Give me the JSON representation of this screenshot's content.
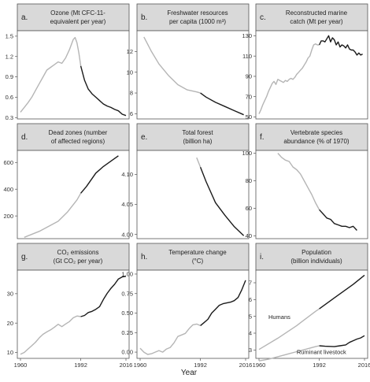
{
  "figure": {
    "xlabel": "Year"
  },
  "colors": {
    "before": "#b5b5b5",
    "after": "#1a1a1a",
    "strip": "#d9d9d9"
  },
  "chart_data": [
    {
      "id": "a",
      "letter": "a.",
      "type": "line",
      "title": [
        "Ozone (Mt CFC-11-",
        "equivalent per year)"
      ],
      "xlim": [
        1960,
        2016
      ],
      "ylim": [
        0.28,
        1.58
      ],
      "xticks": [],
      "yticks": [
        0.3,
        0.6,
        0.9,
        1.2,
        1.5
      ],
      "ytick_labels": [
        "0.3",
        "0.6",
        "0.9",
        "1.2",
        "1.5"
      ],
      "split": 1992,
      "series": [
        {
          "x": [
            1960,
            1962,
            1964,
            1966,
            1968,
            1970,
            1972,
            1974,
            1976,
            1978,
            1980,
            1982,
            1984,
            1986,
            1988,
            1989,
            1990,
            1991,
            1992,
            1994,
            1996,
            1998,
            2000,
            2002,
            2004,
            2006,
            2008,
            2010,
            2012,
            2014,
            2016
          ],
          "y": [
            0.38,
            0.45,
            0.52,
            0.6,
            0.7,
            0.8,
            0.9,
            1.0,
            1.04,
            1.08,
            1.12,
            1.1,
            1.18,
            1.3,
            1.45,
            1.48,
            1.4,
            1.25,
            1.06,
            0.85,
            0.72,
            0.65,
            0.6,
            0.55,
            0.5,
            0.47,
            0.45,
            0.42,
            0.4,
            0.35,
            0.33
          ]
        }
      ],
      "annotations": []
    },
    {
      "id": "b",
      "letter": "b.",
      "type": "line",
      "title": [
        "Freshwater resources",
        "per capita (1000 m³)"
      ],
      "xlim": [
        1960,
        2016
      ],
      "ylim": [
        5.5,
        14.0
      ],
      "xticks": [],
      "yticks": [
        6,
        8,
        10,
        12
      ],
      "ytick_labels": [
        "6",
        "8",
        "10",
        "12"
      ],
      "split": 1992,
      "series": [
        {
          "x": [
            1962,
            1966,
            1970,
            1975,
            1980,
            1985,
            1990,
            1992,
            1995,
            2000,
            2005,
            2010,
            2015
          ],
          "y": [
            13.4,
            12.0,
            10.8,
            9.7,
            8.8,
            8.3,
            8.1,
            8.0,
            7.6,
            7.1,
            6.7,
            6.3,
            5.9
          ]
        }
      ],
      "annotations": []
    },
    {
      "id": "c",
      "letter": "c.",
      "type": "line",
      "title": [
        "Reconstructed marine",
        "catch (Mt per year)"
      ],
      "xlim": [
        1960,
        2016
      ],
      "ylim": [
        48,
        135
      ],
      "xticks": [],
      "yticks": [
        50,
        70,
        90,
        110,
        130
      ],
      "ytick_labels": [
        "50",
        "70",
        "90",
        "110",
        "130"
      ],
      "split": 1992,
      "series": [
        {
          "x": [
            1960,
            1961,
            1962,
            1963,
            1964,
            1965,
            1966,
            1967,
            1968,
            1969,
            1970,
            1971,
            1972,
            1973,
            1974,
            1975,
            1976,
            1977,
            1978,
            1979,
            1980,
            1981,
            1982,
            1983,
            1984,
            1985,
            1986,
            1987,
            1988,
            1989,
            1990,
            1991,
            1992,
            1993,
            1994,
            1995,
            1996,
            1997,
            1998,
            1999,
            2000,
            2001,
            2002,
            2003,
            2004,
            2005,
            2006,
            2007,
            2008,
            2009,
            2010,
            2011,
            2012,
            2013,
            2014,
            2015
          ],
          "y": [
            53,
            57,
            62,
            66,
            70,
            75,
            79,
            83,
            85,
            82,
            87,
            86,
            85,
            84,
            86,
            85,
            87,
            88,
            87,
            89,
            92,
            94,
            96,
            98,
            101,
            104,
            108,
            110,
            116,
            121,
            122,
            121,
            121,
            125,
            125,
            124,
            127,
            130,
            124,
            128,
            126,
            121,
            124,
            119,
            121,
            120,
            118,
            121,
            117,
            116,
            116,
            114,
            111,
            113,
            111,
            112
          ]
        }
      ],
      "annotations": []
    },
    {
      "id": "d",
      "letter": "d.",
      "type": "line",
      "title": [
        "Dead zones (number",
        "of affected regions)"
      ],
      "xlim": [
        1960,
        2016
      ],
      "ylim": [
        30,
        690
      ],
      "xticks": [],
      "yticks": [
        200,
        400,
        600
      ],
      "ytick_labels": [
        "200",
        "400",
        "600"
      ],
      "split": 1992,
      "series": [
        {
          "x": [
            1962,
            1970,
            1980,
            1985,
            1990,
            1992,
            1995,
            2000,
            2004,
            2008,
            2012
          ],
          "y": [
            40,
            85,
            160,
            230,
            320,
            370,
            420,
            520,
            570,
            610,
            650
          ]
        }
      ],
      "annotations": []
    },
    {
      "id": "e",
      "letter": "e.",
      "type": "line",
      "title": [
        "Total forest",
        "(billion ha)"
      ],
      "xlim": [
        1960,
        2016
      ],
      "ylim": [
        3.993,
        4.14
      ],
      "xticks": [],
      "yticks": [
        4.0,
        4.05,
        4.1
      ],
      "ytick_labels": [
        "4.00",
        "4.05",
        "4.10"
      ],
      "split": 1992,
      "series": [
        {
          "x": [
            1990,
            1992,
            1995,
            2000,
            2005,
            2010,
            2015
          ],
          "y": [
            4.128,
            4.112,
            4.088,
            4.053,
            4.032,
            4.013,
            3.998
          ]
        }
      ],
      "annotations": []
    },
    {
      "id": "f",
      "letter": "f.",
      "type": "line",
      "title": [
        "Vertebrate species",
        "abundance (% of 1970)"
      ],
      "xlim": [
        1960,
        2016
      ],
      "ylim": [
        38,
        102
      ],
      "xticks": [],
      "yticks": [
        40,
        60,
        80,
        100
      ],
      "ytick_labels": [
        "40",
        "60",
        "80",
        "100"
      ],
      "split": 1992,
      "series": [
        {
          "x": [
            1970,
            1972,
            1974,
            1976,
            1978,
            1980,
            1982,
            1984,
            1986,
            1988,
            1990,
            1992,
            1994,
            1996,
            1998,
            2000,
            2002,
            2004,
            2006,
            2008,
            2010,
            2012
          ],
          "y": [
            100,
            97,
            95,
            94,
            90,
            88,
            85,
            80,
            75,
            70,
            64,
            59,
            56,
            53,
            52,
            49,
            48,
            47,
            47,
            46,
            47,
            44
          ]
        }
      ],
      "annotations": []
    },
    {
      "id": "g",
      "letter": "g.",
      "type": "line",
      "title": [
        "CO₂ emissions",
        "(Gt CO₂ per year)"
      ],
      "xlim": [
        1960,
        2016
      ],
      "ylim": [
        8,
        38
      ],
      "xticks": [
        1960,
        1992,
        2016
      ],
      "yticks": [
        10,
        20,
        30
      ],
      "ytick_labels": [
        "10",
        "20",
        "30"
      ],
      "split": 1992,
      "series": [
        {
          "x": [
            1960,
            1962,
            1964,
            1966,
            1968,
            1970,
            1972,
            1974,
            1976,
            1978,
            1980,
            1982,
            1984,
            1986,
            1988,
            1990,
            1992,
            1994,
            1996,
            1998,
            2000,
            2002,
            2004,
            2006,
            2008,
            2010,
            2012,
            2014,
            2016
          ],
          "y": [
            9.4,
            10,
            11.2,
            12.3,
            13.5,
            15,
            16.2,
            17,
            17.7,
            18.6,
            19.6,
            18.8,
            19.7,
            20.5,
            21.8,
            22.4,
            22.2,
            22.6,
            23.6,
            24,
            24.7,
            25.6,
            28,
            30.1,
            31.8,
            33.2,
            35,
            35.7,
            35.9
          ]
        }
      ],
      "annotations": []
    },
    {
      "id": "h",
      "letter": "h.",
      "type": "line",
      "title": [
        "Temperature change",
        "(°C)"
      ],
      "xlim": [
        1960,
        2016
      ],
      "ylim": [
        -0.08,
        1.05
      ],
      "xticks": [
        1960,
        1992,
        2016
      ],
      "yticks": [
        0.0,
        0.25,
        0.5,
        0.75,
        1.0
      ],
      "ytick_labels": [
        "0.00",
        "0.25",
        "0.50",
        "0.75",
        "1.00"
      ],
      "split": 1992,
      "series": [
        {
          "x": [
            1960,
            1962,
            1964,
            1966,
            1968,
            1970,
            1972,
            1974,
            1976,
            1978,
            1980,
            1982,
            1984,
            1986,
            1988,
            1990,
            1992,
            1994,
            1996,
            1998,
            2000,
            2002,
            2004,
            2006,
            2008,
            2010,
            2012,
            2014,
            2016
          ],
          "y": [
            0.05,
            0.0,
            -0.03,
            -0.02,
            0.0,
            0.02,
            0.0,
            0.04,
            0.06,
            0.12,
            0.2,
            0.22,
            0.24,
            0.3,
            0.35,
            0.36,
            0.34,
            0.38,
            0.42,
            0.5,
            0.55,
            0.6,
            0.62,
            0.63,
            0.64,
            0.66,
            0.7,
            0.8,
            0.92
          ]
        }
      ],
      "annotations": []
    },
    {
      "id": "i",
      "letter": "i.",
      "type": "line",
      "title": [
        "Population",
        "(billion individuals)"
      ],
      "xlim": [
        1960,
        2016
      ],
      "ylim": [
        2.5,
        7.75
      ],
      "xticks": [
        1960,
        1992,
        2016
      ],
      "yticks": [
        3,
        4,
        5,
        6,
        7
      ],
      "ytick_labels": [
        "3",
        "4",
        "5",
        "6",
        "7"
      ],
      "split": 1992,
      "series": [
        {
          "name": "Humans",
          "x": [
            1960,
            1970,
            1980,
            1990,
            1992,
            2000,
            2010,
            2016
          ],
          "y": [
            3.03,
            3.7,
            4.45,
            5.3,
            5.45,
            6.1,
            6.9,
            7.45
          ]
        },
        {
          "name": "Ruminant livestock",
          "x": [
            1960,
            1965,
            1970,
            1975,
            1980,
            1985,
            1990,
            1992,
            1995,
            2000,
            2003,
            2006,
            2008,
            2010,
            2012,
            2014,
            2016
          ],
          "y": [
            2.35,
            2.45,
            2.6,
            2.75,
            2.9,
            3.05,
            3.2,
            3.25,
            3.22,
            3.2,
            3.25,
            3.3,
            3.45,
            3.55,
            3.65,
            3.72,
            3.85
          ]
        }
      ],
      "annotations": [
        {
          "text": "Humans",
          "x": 1965,
          "y": 4.85
        },
        {
          "text": "Ruminant livestock",
          "x": 1980,
          "y": 2.75
        }
      ]
    }
  ]
}
